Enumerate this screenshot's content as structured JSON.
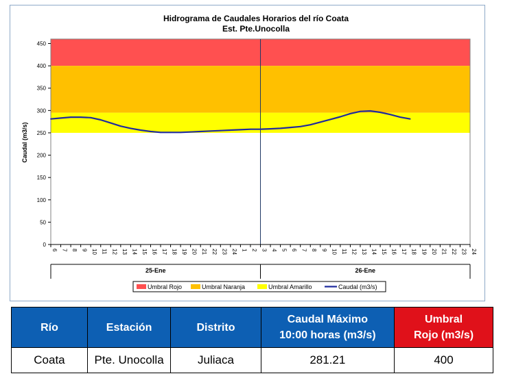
{
  "chart_data": {
    "type": "line",
    "title": "Hidrograma de Caudales Horarios del río Coata",
    "subtitle": "Est. Pte.Unocolla",
    "ylabel": "Caudal  (m3/s)",
    "ylim": [
      0,
      460
    ],
    "yticks": [
      0,
      50,
      100,
      150,
      200,
      250,
      300,
      350,
      400,
      450
    ],
    "x_hours": [
      "6",
      "7",
      "8",
      "9",
      "10",
      "11",
      "12",
      "13",
      "14",
      "15",
      "16",
      "17",
      "18",
      "19",
      "20",
      "21",
      "22",
      "23",
      "24",
      "1",
      "2",
      "3",
      "4",
      "5",
      "6",
      "7",
      "8",
      "9",
      "10",
      "11",
      "12",
      "13",
      "14",
      "15",
      "16",
      "17",
      "18",
      "19",
      "20",
      "21",
      "22",
      "23",
      "24"
    ],
    "day_labels": [
      "25-Ene",
      "26-Ene"
    ],
    "day_boundary_index": 21,
    "thresholds": [
      {
        "name": "Umbral Rojo",
        "from": 400,
        "to": 460,
        "color": "#ff5050"
      },
      {
        "name": "Umbral Naranja",
        "from": 295,
        "to": 400,
        "color": "#ffc000"
      },
      {
        "name": "Umbral Amarillo",
        "from": 250,
        "to": 295,
        "color": "#ffff00"
      }
    ],
    "series": [
      {
        "name": "Caudal (m3/s)",
        "color": "#1f2a9e",
        "values": [
          281,
          283,
          285,
          285,
          284,
          279,
          272,
          265,
          260,
          256,
          253,
          251,
          251,
          251,
          252,
          253,
          254,
          255,
          256,
          257,
          258,
          258,
          259,
          260,
          262,
          264,
          268,
          274,
          280,
          286,
          293,
          298,
          299,
          296,
          291,
          285,
          281
        ]
      }
    ],
    "legend": [
      "Umbral Rojo",
      "Umbral Naranja",
      "Umbral Amarillo",
      "Caudal (m3/s)"
    ],
    "legend_position": "bottom"
  },
  "table": {
    "headers": [
      {
        "text": "Río",
        "style": "blue"
      },
      {
        "text": "Estación",
        "style": "blue"
      },
      {
        "text": "Distrito",
        "style": "blue"
      },
      {
        "line1": "Caudal Máximo",
        "line2": "10:00 horas (m3/s)",
        "style": "blue"
      },
      {
        "line1": "Umbral",
        "line2": "Rojo (m3/s)",
        "style": "red"
      }
    ],
    "row": [
      "Coata",
      "Pte. Unocolla",
      "Juliaca",
      "281.21",
      "400"
    ],
    "colors": {
      "header_blue": "#0d5fb3",
      "header_red": "#e0111a"
    }
  }
}
